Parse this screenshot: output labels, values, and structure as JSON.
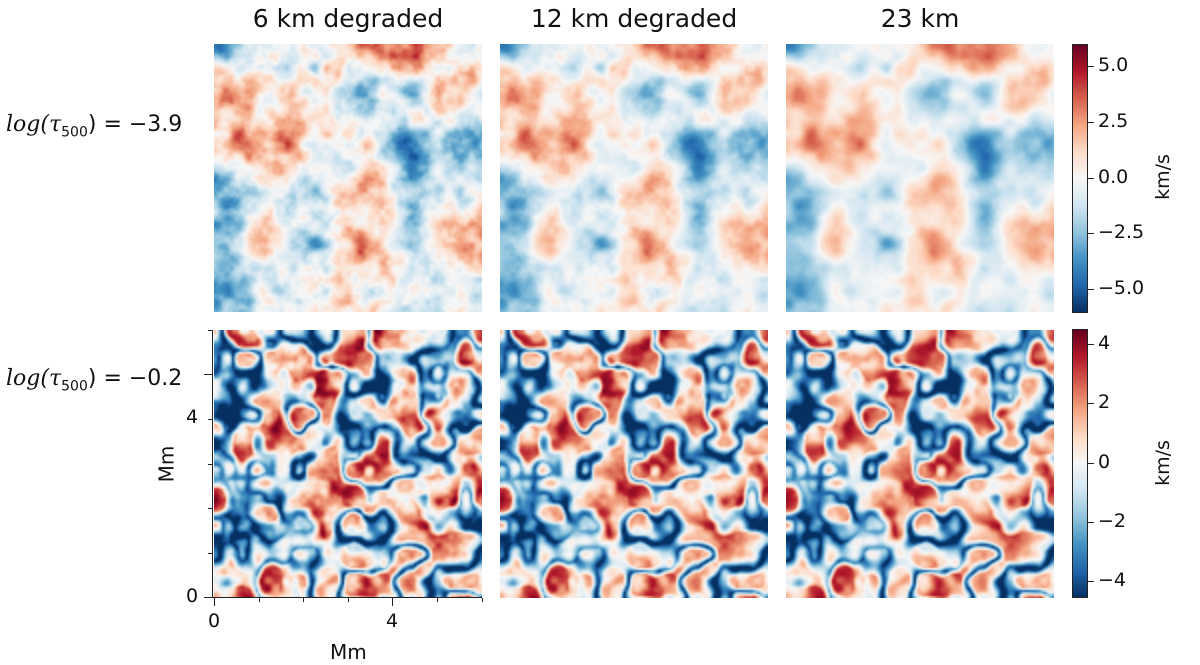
{
  "columns": [
    "6 km degraded",
    "12 km degraded",
    "23 km"
  ],
  "rows": [
    {
      "label_prefix": "log",
      "label_tau": "(τ",
      "label_sub": "500",
      "label_suffix": ") = −3.9"
    },
    {
      "label_prefix": "log",
      "label_tau": "(τ",
      "label_sub": "500",
      "label_suffix": ") = −0.2"
    }
  ],
  "colorbars": [
    {
      "unit": "km/s",
      "ticks": [
        "5.0",
        "2.5",
        "0.0",
        "−2.5",
        "−5.0"
      ],
      "range": [
        -6,
        6
      ]
    },
    {
      "unit": "km/s",
      "ticks": [
        "4",
        "2",
        "0",
        "−2",
        "−4"
      ],
      "range": [
        -4.5,
        4.5
      ]
    }
  ],
  "axes": {
    "xlabel": "Mm",
    "ylabel": "Mm",
    "x_ticks": [
      "0",
      "4"
    ],
    "y_ticks": [
      "0",
      "4"
    ]
  },
  "chart_data": {
    "type": "heatmap",
    "colormap": "RdBu_r",
    "title": "",
    "xlabel": "Mm",
    "ylabel": "Mm",
    "xlim": [
      0,
      6
    ],
    "ylim": [
      0,
      6
    ],
    "panels_columns": [
      "6 km degraded",
      "12 km degraded",
      "23 km"
    ],
    "panels_rows": [
      "log(τ500) = −3.9",
      "log(τ500) = −0.2"
    ],
    "color_ranges": [
      [
        -6,
        6
      ],
      [
        -4.5,
        4.5
      ]
    ],
    "colorbar_unit": "km/s"
  }
}
